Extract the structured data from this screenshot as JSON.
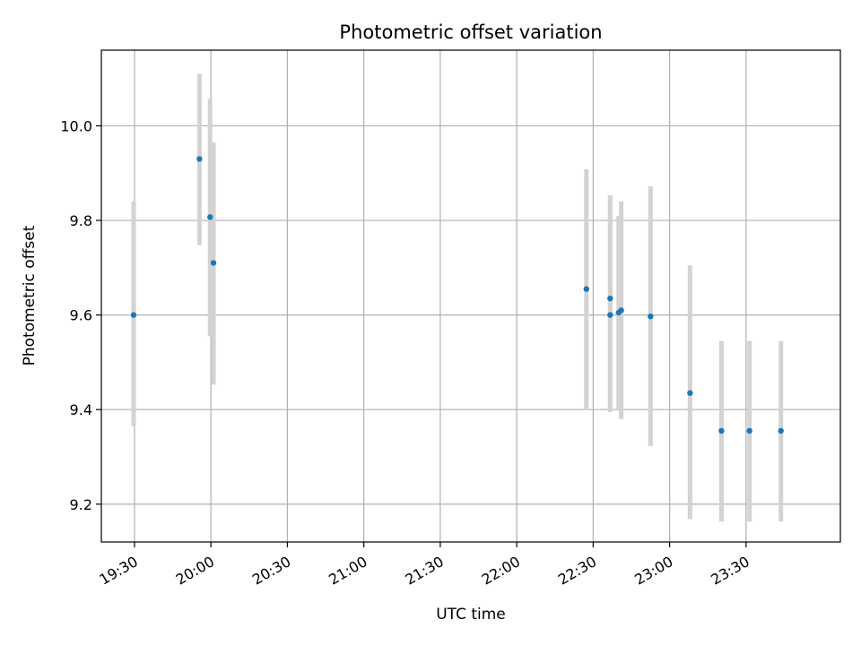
{
  "chart_data": {
    "type": "scatter",
    "title": "Photometric offset variation",
    "xlabel": "UTC time",
    "ylabel": "Photometric offset",
    "x_ticks": [
      "19:30",
      "20:00",
      "20:30",
      "21:00",
      "21:30",
      "22:00",
      "22:30",
      "23:00",
      "23:30"
    ],
    "y_ticks": [
      "9.2",
      "9.4",
      "9.6",
      "9.8",
      "10.0"
    ],
    "xlim": [
      "19:17",
      "00:07"
    ],
    "ylim": [
      9.12,
      10.16
    ],
    "grid": true,
    "colors": {
      "points": "#1f77b4",
      "errorbars": "#d3d3d3",
      "grid": "#b0b0b0"
    },
    "series": [
      {
        "points": [
          {
            "x": "19:29:40",
            "y": 9.6,
            "err_low": 9.365,
            "err_high": 9.84
          },
          {
            "x": "19:55:30",
            "y": 9.93,
            "err_low": 9.748,
            "err_high": 10.11
          },
          {
            "x": "19:59:40",
            "y": 9.807,
            "err_low": 9.555,
            "err_high": 10.057
          },
          {
            "x": "20:01:00",
            "y": 9.71,
            "err_low": 9.453,
            "err_high": 9.965
          },
          {
            "x": "22:27:20",
            "y": 9.655,
            "err_low": 9.4,
            "err_high": 9.908
          },
          {
            "x": "22:36:40",
            "y": 9.6,
            "err_low": 9.395,
            "err_high": 9.853
          },
          {
            "x": "22:36:40",
            "y": 9.635,
            "err_low": 9.395,
            "err_high": 9.853
          },
          {
            "x": "22:40:00",
            "y": 9.605,
            "err_low": 9.4,
            "err_high": 9.81
          },
          {
            "x": "22:41:00",
            "y": 9.61,
            "err_low": 9.38,
            "err_high": 9.84
          },
          {
            "x": "22:52:30",
            "y": 9.597,
            "err_low": 9.323,
            "err_high": 9.872
          },
          {
            "x": "23:08:00",
            "y": 9.435,
            "err_low": 9.168,
            "err_high": 9.705
          },
          {
            "x": "23:20:20",
            "y": 9.355,
            "err_low": 9.163,
            "err_high": 9.545
          },
          {
            "x": "23:31:20",
            "y": 9.355,
            "err_low": 9.163,
            "err_high": 9.545
          },
          {
            "x": "23:43:40",
            "y": 9.355,
            "err_low": 9.163,
            "err_high": 9.545
          }
        ]
      }
    ]
  }
}
